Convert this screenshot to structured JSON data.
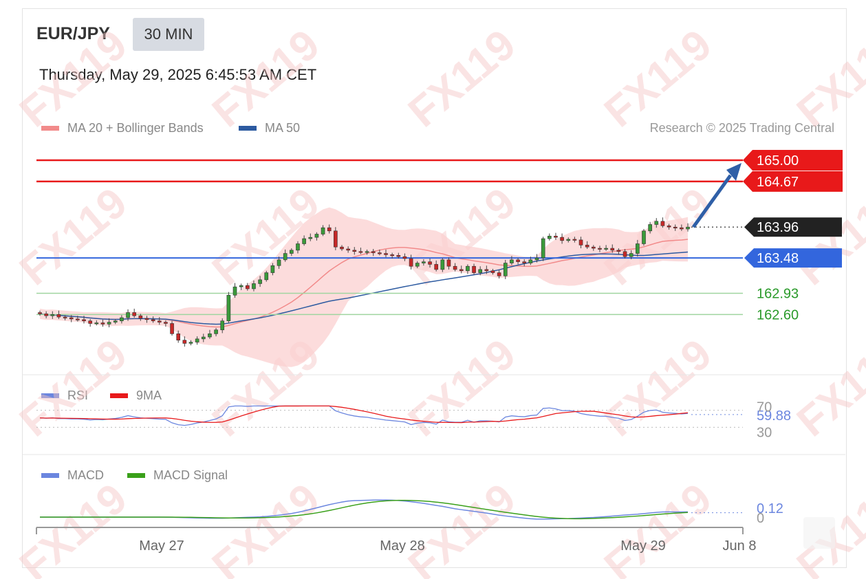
{
  "header": {
    "symbol": "EUR/JPY",
    "timeframe": "30 MIN",
    "datetime": "Thursday, May 29, 2025 6:45:53 AM CET"
  },
  "legend": {
    "ma20": {
      "label": "MA 20 + Bollinger Bands",
      "color": "#f28a8a"
    },
    "ma50": {
      "label": "MA 50",
      "color": "#2c5aa0"
    }
  },
  "copyright": "Research © 2025 Trading Central",
  "watermark": "FX119",
  "colors": {
    "resistance": "#e8191a",
    "support": "#2a9a2a",
    "pivot": "#3366dd",
    "current": "#222222",
    "bull": "#3a9a3a",
    "bear": "#c62828",
    "arrow": "#2f5fa7"
  },
  "chart_data": [
    {
      "type": "candlestick",
      "ylim": [
        162.1,
        165.35
      ],
      "x_ticks": [
        "May 27",
        "May 28",
        "May 29",
        "Jun 8"
      ],
      "levels": [
        {
          "label": "165.00",
          "value": 165.0,
          "kind": "resistance"
        },
        {
          "label": "164.67",
          "value": 164.67,
          "kind": "resistance"
        },
        {
          "label": "163.96",
          "value": 163.96,
          "kind": "current"
        },
        {
          "label": "163.48",
          "value": 163.48,
          "kind": "pivot"
        },
        {
          "label": "162.93",
          "value": 162.93,
          "kind": "support"
        },
        {
          "label": "162.60",
          "value": 162.6,
          "kind": "support"
        }
      ],
      "close": [
        162.61,
        162.58,
        162.6,
        162.56,
        162.55,
        162.53,
        162.52,
        162.5,
        162.46,
        162.47,
        162.45,
        162.48,
        162.5,
        162.55,
        162.63,
        162.58,
        162.54,
        162.52,
        162.5,
        162.48,
        162.46,
        162.3,
        162.2,
        162.15,
        162.17,
        162.22,
        162.25,
        162.3,
        162.36,
        162.5,
        162.9,
        163.03,
        163.05,
        163.0,
        163.08,
        163.14,
        163.25,
        163.36,
        163.45,
        163.55,
        163.6,
        163.7,
        163.78,
        163.8,
        163.85,
        163.95,
        163.9,
        163.65,
        163.62,
        163.6,
        163.58,
        163.57,
        163.58,
        163.56,
        163.55,
        163.53,
        163.52,
        163.5,
        163.47,
        163.35,
        163.4,
        163.42,
        163.38,
        163.3,
        163.45,
        163.35,
        163.3,
        163.28,
        163.35,
        163.25,
        163.3,
        163.28,
        163.25,
        163.2,
        163.4,
        163.45,
        163.42,
        163.4,
        163.45,
        163.48,
        163.78,
        163.82,
        163.8,
        163.75,
        163.77,
        163.76,
        163.68,
        163.65,
        163.63,
        163.62,
        163.63,
        163.6,
        163.58,
        163.5,
        163.55,
        163.7,
        163.9,
        164.0,
        164.05,
        163.98,
        163.96,
        163.95,
        163.93,
        163.96
      ],
      "bollinger": {
        "upper_max": 163.95,
        "lower_min": 162.2
      },
      "projection": {
        "from": 163.96,
        "to": 165.0
      }
    },
    {
      "type": "line",
      "series": [
        {
          "name": "RSI",
          "color": "#6b86df"
        },
        {
          "name": "9MA",
          "color": "#e8191a"
        }
      ],
      "levels": [
        70,
        30
      ],
      "last_value_label": "59.88",
      "reference_labels": [
        "70",
        "30"
      ]
    },
    {
      "type": "line",
      "series": [
        {
          "name": "MACD",
          "color": "#6b86df"
        },
        {
          "name": "MACD Signal",
          "color": "#3aa01a"
        }
      ],
      "last_value_label": "0.12",
      "reference_label": "0"
    }
  ]
}
